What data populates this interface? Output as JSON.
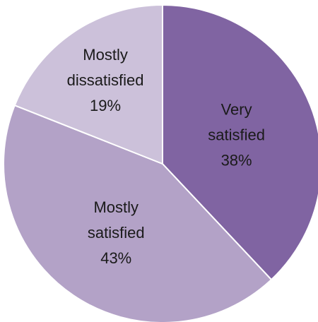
{
  "chart_data": {
    "type": "pie",
    "start_angle": "12 o'clock",
    "direction": "clockwise",
    "slices": [
      {
        "label_lines": [
          "Very",
          "satisfied"
        ],
        "value": 38,
        "value_label": "38%",
        "color": "#8064a2"
      },
      {
        "label_lines": [
          "Mostly",
          "satisfied"
        ],
        "value": 43,
        "value_label": "43%",
        "color": "#b3a2c7"
      },
      {
        "label_lines": [
          "Mostly",
          "dissatisfied"
        ],
        "value": 19,
        "value_label": "19%",
        "color": "#ccc1da"
      }
    ],
    "slice_border_color": "#ffffff",
    "legend": "none"
  }
}
